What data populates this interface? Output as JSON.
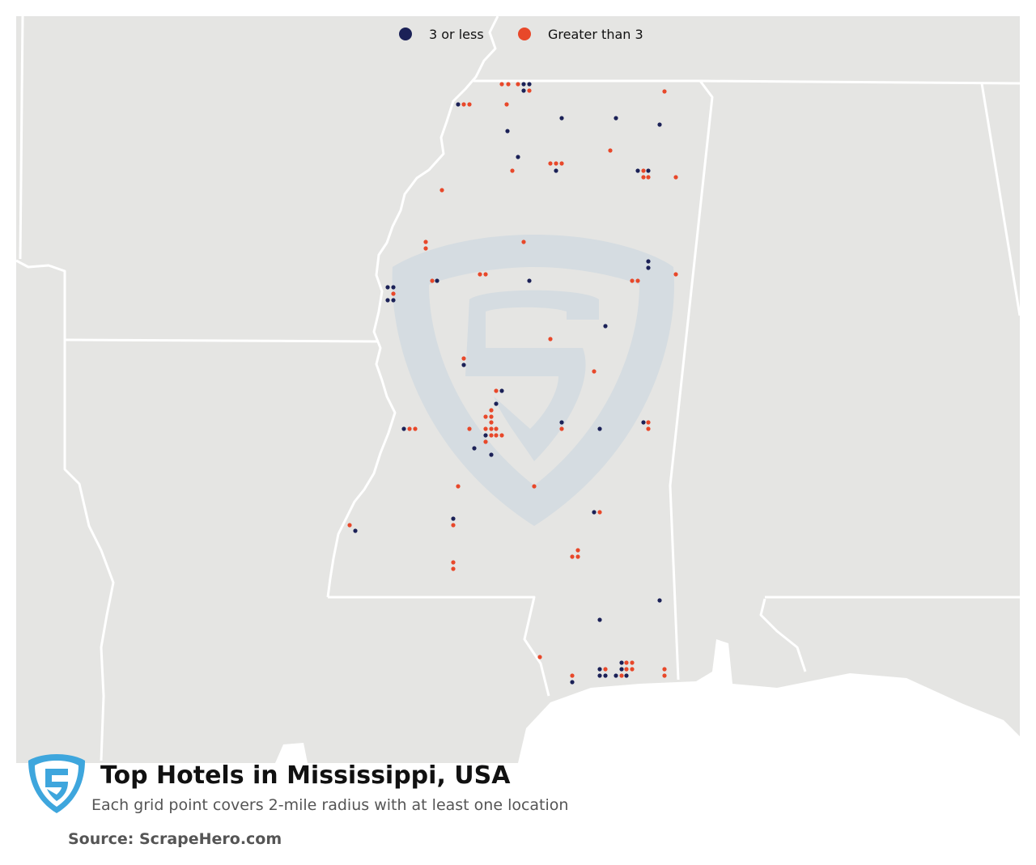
{
  "legend": {
    "items": [
      {
        "label": "3 or less",
        "color": "#1b2157"
      },
      {
        "label": "Greater than 3",
        "color": "#e8482a"
      }
    ]
  },
  "title": "Top Hotels in Mississippi, USA",
  "subtitle": "Each grid point covers 2-mile radius with at least one location",
  "source": "Source: ScrapeHero.com"
}
